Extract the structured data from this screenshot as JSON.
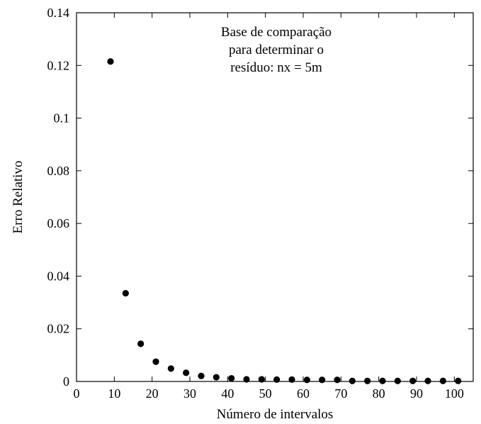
{
  "chart_data": {
    "type": "scatter",
    "xlabel": "Número de intervalos",
    "ylabel": "Erro Relativo",
    "xlim": [
      0,
      105
    ],
    "ylim": [
      0,
      0.14
    ],
    "xticks": [
      "0",
      "10",
      "20",
      "30",
      "40",
      "50",
      "60",
      "70",
      "80",
      "90",
      "100"
    ],
    "yticks": [
      "0",
      "0.02",
      "0.04",
      "0.06",
      "0.08",
      "0.1",
      "0.12",
      "0.14"
    ],
    "grid": false,
    "annotation": [
      "Base de comparação",
      "para determinar o",
      "resíduo: nx = 5m"
    ],
    "series": [
      {
        "x": [
          9,
          13,
          17,
          21,
          25,
          29,
          33,
          37,
          41,
          45,
          49,
          53,
          57,
          61,
          65,
          69,
          73,
          77,
          81,
          85,
          89,
          93,
          97,
          101
        ],
        "y": [
          0.1215,
          0.0335,
          0.0143,
          0.0075,
          0.0049,
          0.0033,
          0.0021,
          0.0016,
          0.0012,
          0.0008,
          0.0008,
          0.0007,
          0.0007,
          0.0006,
          0.0006,
          0.0006,
          0.0002,
          0.0002,
          0.0002,
          0.0002,
          0.0002,
          0.0002,
          0.0002,
          0.0002
        ]
      }
    ]
  }
}
